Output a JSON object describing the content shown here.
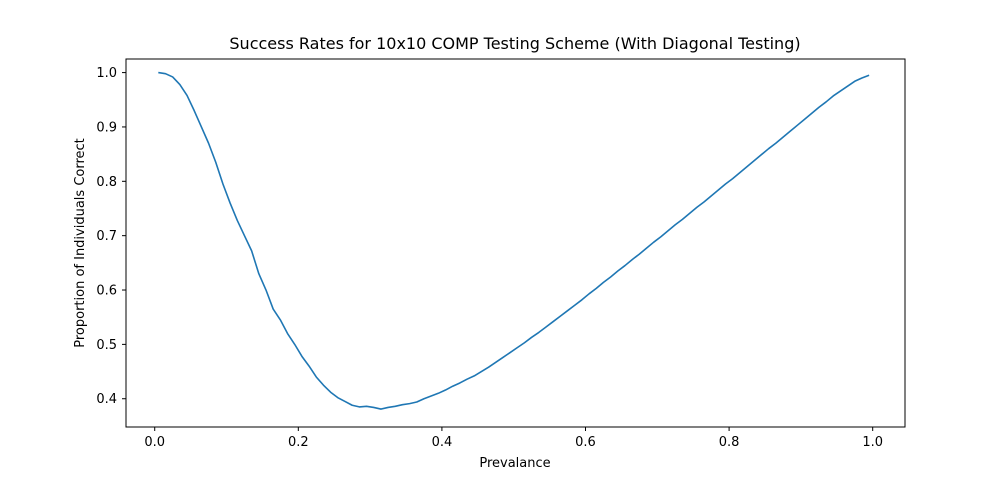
{
  "chart_data": {
    "type": "line",
    "title": "Success Rates for 10x10 COMP Testing Scheme (With Diagonal Testing)",
    "xlabel": "Prevalance",
    "ylabel": "Proportion of Individuals Correct",
    "xlim": [
      -0.04,
      1.045
    ],
    "ylim": [
      0.348,
      1.025
    ],
    "xticks": [
      "0.0",
      "0.2",
      "0.4",
      "0.6",
      "0.8",
      "1.0"
    ],
    "yticks": [
      "0.4",
      "0.5",
      "0.6",
      "0.7",
      "0.8",
      "0.9",
      "1.0"
    ],
    "grid": false,
    "color": "#1f77b4",
    "series": [
      {
        "x": [
          0.005,
          0.015,
          0.025,
          0.035,
          0.045,
          0.055,
          0.065,
          0.075,
          0.085,
          0.095,
          0.105,
          0.115,
          0.125,
          0.135,
          0.145,
          0.155,
          0.165,
          0.175,
          0.185,
          0.195,
          0.205,
          0.215,
          0.225,
          0.235,
          0.245,
          0.255,
          0.265,
          0.275,
          0.285,
          0.295,
          0.305,
          0.315,
          0.325,
          0.335,
          0.345,
          0.355,
          0.365,
          0.375,
          0.385,
          0.395,
          0.405,
          0.415,
          0.425,
          0.435,
          0.445,
          0.455,
          0.465,
          0.475,
          0.485,
          0.495,
          0.505,
          0.515,
          0.525,
          0.535,
          0.545,
          0.555,
          0.565,
          0.575,
          0.585,
          0.595,
          0.605,
          0.615,
          0.625,
          0.635,
          0.645,
          0.655,
          0.665,
          0.675,
          0.685,
          0.695,
          0.705,
          0.715,
          0.725,
          0.735,
          0.745,
          0.755,
          0.765,
          0.775,
          0.785,
          0.795,
          0.805,
          0.815,
          0.825,
          0.835,
          0.845,
          0.855,
          0.865,
          0.875,
          0.885,
          0.895,
          0.905,
          0.915,
          0.925,
          0.935,
          0.945,
          0.955,
          0.965,
          0.975,
          0.985,
          0.995
        ],
        "values": [
          1.0,
          0.998,
          0.992,
          0.978,
          0.958,
          0.93,
          0.9,
          0.87,
          0.835,
          0.795,
          0.76,
          0.728,
          0.7,
          0.672,
          0.63,
          0.6,
          0.565,
          0.545,
          0.52,
          0.5,
          0.478,
          0.46,
          0.44,
          0.425,
          0.412,
          0.402,
          0.395,
          0.388,
          0.385,
          0.386,
          0.384,
          0.381,
          0.384,
          0.386,
          0.389,
          0.391,
          0.394,
          0.4,
          0.405,
          0.41,
          0.416,
          0.423,
          0.429,
          0.436,
          0.442,
          0.45,
          0.458,
          0.467,
          0.476,
          0.485,
          0.494,
          0.503,
          0.513,
          0.522,
          0.532,
          0.542,
          0.552,
          0.562,
          0.572,
          0.582,
          0.593,
          0.603,
          0.614,
          0.624,
          0.635,
          0.645,
          0.656,
          0.666,
          0.677,
          0.688,
          0.698,
          0.709,
          0.72,
          0.73,
          0.741,
          0.752,
          0.762,
          0.773,
          0.784,
          0.795,
          0.805,
          0.816,
          0.827,
          0.838,
          0.849,
          0.86,
          0.87,
          0.881,
          0.892,
          0.903,
          0.914,
          0.925,
          0.936,
          0.946,
          0.957,
          0.966,
          0.975,
          0.984,
          0.99,
          0.995
        ]
      }
    ]
  }
}
